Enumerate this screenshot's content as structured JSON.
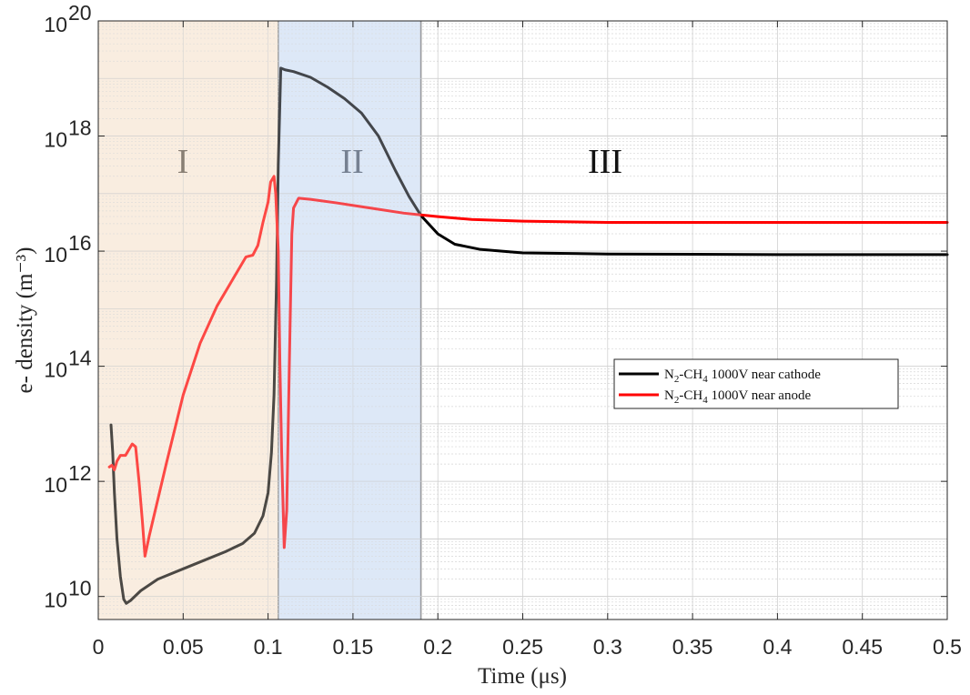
{
  "chart_data": {
    "type": "line",
    "xlabel": "Time (μs)",
    "ylabel": "e- density (m⁻³)",
    "xlim": [
      0,
      0.5
    ],
    "ylim_log10": [
      9.6,
      20
    ],
    "yscale": "log",
    "grid": true,
    "minor_grid": true,
    "legend_position": "right-middle",
    "x_ticks": [
      "0",
      "0.05",
      "0.1",
      "0.15",
      "0.2",
      "0.25",
      "0.3",
      "0.35",
      "0.4",
      "0.45",
      "0.5"
    ],
    "y_ticks": [
      {
        "base": "10",
        "exp": "10"
      },
      {
        "base": "10",
        "exp": "12"
      },
      {
        "base": "10",
        "exp": "14"
      },
      {
        "base": "10",
        "exp": "16"
      },
      {
        "base": "10",
        "exp": "18"
      },
      {
        "base": "10",
        "exp": "20"
      }
    ],
    "regions": [
      {
        "label": "I",
        "x_start": 0,
        "x_end": 0.106,
        "color": "#f9ede0",
        "label_color": "#5a5046"
      },
      {
        "label": "II",
        "x_start": 0.106,
        "x_end": 0.19,
        "color": "#dde9f7",
        "label_color": "#4a5566"
      },
      {
        "label": "III",
        "x_start": 0.19,
        "x_end": 0.5,
        "color": "none",
        "label_color": "#111111"
      }
    ],
    "series": [
      {
        "name": "near cathode",
        "color": "#000000",
        "points": [
          [
            0.0075,
            12.98
          ],
          [
            0.0085,
            12.5
          ],
          [
            0.0095,
            11.8
          ],
          [
            0.011,
            11.0
          ],
          [
            0.013,
            10.35
          ],
          [
            0.015,
            9.95
          ],
          [
            0.0165,
            9.88
          ],
          [
            0.019,
            9.93
          ],
          [
            0.025,
            10.1
          ],
          [
            0.035,
            10.3
          ],
          [
            0.05,
            10.48
          ],
          [
            0.065,
            10.66
          ],
          [
            0.075,
            10.78
          ],
          [
            0.085,
            10.92
          ],
          [
            0.092,
            11.1
          ],
          [
            0.097,
            11.4
          ],
          [
            0.1,
            11.8
          ],
          [
            0.102,
            12.5
          ],
          [
            0.1035,
            13.5
          ],
          [
            0.105,
            15.5
          ],
          [
            0.106,
            17.5
          ],
          [
            0.1075,
            19.18
          ],
          [
            0.11,
            19.15
          ],
          [
            0.115,
            19.12
          ],
          [
            0.125,
            19.02
          ],
          [
            0.135,
            18.85
          ],
          [
            0.145,
            18.65
          ],
          [
            0.155,
            18.4
          ],
          [
            0.165,
            18.0
          ],
          [
            0.175,
            17.4
          ],
          [
            0.183,
            16.95
          ],
          [
            0.19,
            16.62
          ],
          [
            0.2,
            16.3
          ],
          [
            0.21,
            16.12
          ],
          [
            0.225,
            16.03
          ],
          [
            0.25,
            15.97
          ],
          [
            0.3,
            15.95
          ],
          [
            0.4,
            15.94
          ],
          [
            0.5,
            15.94
          ]
        ]
      },
      {
        "name": "near anode",
        "color": "#ff0000",
        "points": [
          [
            0.0065,
            12.25
          ],
          [
            0.008,
            12.28
          ],
          [
            0.0095,
            12.2
          ],
          [
            0.011,
            12.35
          ],
          [
            0.013,
            12.45
          ],
          [
            0.016,
            12.45
          ],
          [
            0.018,
            12.55
          ],
          [
            0.02,
            12.65
          ],
          [
            0.022,
            12.6
          ],
          [
            0.024,
            12.0
          ],
          [
            0.026,
            11.3
          ],
          [
            0.0275,
            10.7
          ],
          [
            0.03,
            11.05
          ],
          [
            0.04,
            12.3
          ],
          [
            0.05,
            13.5
          ],
          [
            0.06,
            14.4
          ],
          [
            0.07,
            15.05
          ],
          [
            0.08,
            15.55
          ],
          [
            0.087,
            15.9
          ],
          [
            0.091,
            15.93
          ],
          [
            0.094,
            16.1
          ],
          [
            0.097,
            16.5
          ],
          [
            0.1,
            16.85
          ],
          [
            0.1015,
            17.2
          ],
          [
            0.1035,
            17.3
          ],
          [
            0.1045,
            17.0
          ],
          [
            0.106,
            16.0
          ],
          [
            0.107,
            14.0
          ],
          [
            0.108,
            12.5
          ],
          [
            0.1095,
            10.85
          ],
          [
            0.111,
            11.5
          ],
          [
            0.1125,
            14.0
          ],
          [
            0.114,
            16.3
          ],
          [
            0.115,
            16.75
          ],
          [
            0.118,
            16.92
          ],
          [
            0.125,
            16.9
          ],
          [
            0.14,
            16.84
          ],
          [
            0.16,
            16.75
          ],
          [
            0.18,
            16.66
          ],
          [
            0.19,
            16.63
          ],
          [
            0.2,
            16.6
          ],
          [
            0.22,
            16.55
          ],
          [
            0.25,
            16.52
          ],
          [
            0.3,
            16.5
          ],
          [
            0.4,
            16.5
          ],
          [
            0.5,
            16.5
          ]
        ]
      }
    ],
    "legend": {
      "entries": [
        {
          "color": "#000000",
          "n_sub": "2",
          "ch_sub": "4",
          "prefix": "N",
          "mid": "-CH",
          "suffix": " 1000V near cathode"
        },
        {
          "color": "#ff0000",
          "n_sub": "2",
          "ch_sub": "4",
          "prefix": "N",
          "mid": "-CH",
          "suffix": " 1000V near anode"
        }
      ]
    }
  }
}
